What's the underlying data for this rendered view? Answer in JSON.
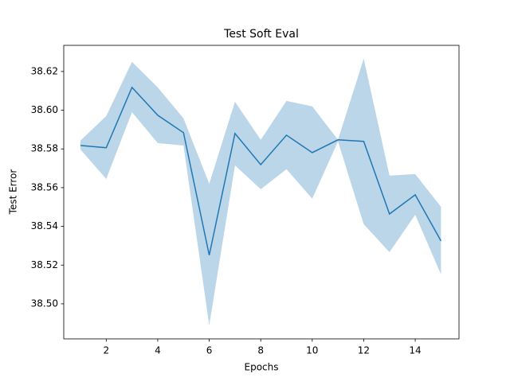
{
  "chart_data": {
    "type": "line",
    "title": "Test Soft Eval",
    "x_label": "Epochs",
    "y_label": "Test Error",
    "x": [
      1,
      2,
      3,
      4,
      5,
      6,
      7,
      8,
      9,
      10,
      11,
      12,
      13,
      14,
      15
    ],
    "series": [
      {
        "color": "#1f77b4",
        "band_color": "#1f77b4",
        "values": [
          38.5818,
          38.5806,
          38.6118,
          38.5974,
          38.5884,
          38.5251,
          38.588,
          38.5719,
          38.5871,
          38.5781,
          38.5847,
          38.5839,
          38.5464,
          38.5563,
          38.5325
        ],
        "upper": [
          38.5843,
          38.597,
          38.625,
          38.6118,
          38.5958,
          38.562,
          38.6044,
          38.5847,
          38.6048,
          38.602,
          38.5847,
          38.6266,
          38.5662,
          38.567,
          38.5501
        ],
        "lower": [
          38.5797,
          38.5645,
          38.599,
          38.583,
          38.5818,
          38.4889,
          38.5715,
          38.5592,
          38.5695,
          38.5543,
          38.5839,
          38.5411,
          38.5267,
          38.546,
          38.5152
        ]
      }
    ],
    "xlim": [
      0.35,
      15.7
    ],
    "ylim": [
      38.4819,
      38.6335
    ],
    "xticks": [
      2,
      4,
      6,
      8,
      10,
      12,
      14
    ],
    "yticks": [
      {
        "value": 38.5,
        "label": "38.50"
      },
      38.52,
      38.54,
      38.56,
      38.58,
      {
        "value": 38.6,
        "label": "38.60"
      },
      38.62
    ],
    "grid": false
  }
}
